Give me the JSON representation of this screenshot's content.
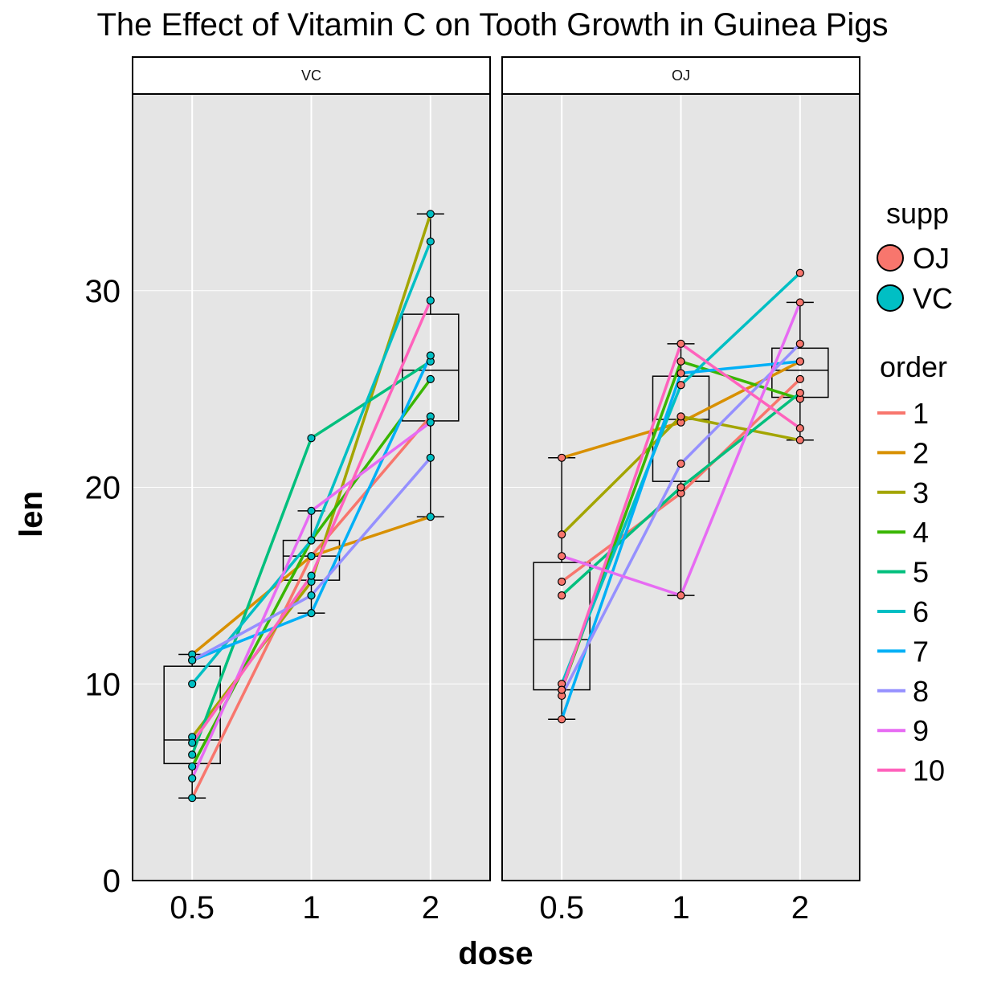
{
  "chart_data": {
    "type": "line",
    "title": "The Effect of Vitamin C on Tooth Growth in Guinea Pigs",
    "xlabel": "dose",
    "ylabel": "len",
    "x_categories": [
      "0.5",
      "1",
      "2"
    ],
    "ylim": [
      0,
      40
    ],
    "y_ticks": [
      0,
      10,
      20,
      30
    ],
    "grid": true,
    "legend_placement": "right",
    "overlays": [
      "boxplot",
      "points"
    ],
    "panels": [
      {
        "label": "VC",
        "supp": "VC",
        "series": [
          {
            "name": "1",
            "values": [
              4.2,
              16.5,
              23.6
            ]
          },
          {
            "name": "2",
            "values": [
              11.5,
              16.5,
              18.5
            ]
          },
          {
            "name": "3",
            "values": [
              7.3,
              15.2,
              33.9
            ]
          },
          {
            "name": "4",
            "values": [
              5.8,
              17.3,
              25.5
            ]
          },
          {
            "name": "5",
            "values": [
              6.4,
              22.5,
              26.4
            ]
          },
          {
            "name": "6",
            "values": [
              10.0,
              17.3,
              32.5
            ]
          },
          {
            "name": "7",
            "values": [
              11.2,
              13.6,
              26.7
            ]
          },
          {
            "name": "8",
            "values": [
              11.2,
              14.5,
              21.5
            ]
          },
          {
            "name": "9",
            "values": [
              5.2,
              18.8,
              23.3
            ]
          },
          {
            "name": "10",
            "values": [
              7.0,
              15.5,
              29.5
            ]
          }
        ]
      },
      {
        "label": "OJ",
        "supp": "OJ",
        "series": [
          {
            "name": "1",
            "values": [
              15.2,
              19.7,
              25.5
            ]
          },
          {
            "name": "2",
            "values": [
              21.5,
              23.3,
              26.4
            ]
          },
          {
            "name": "3",
            "values": [
              17.6,
              23.6,
              22.4
            ]
          },
          {
            "name": "4",
            "values": [
              9.7,
              26.4,
              24.5
            ]
          },
          {
            "name": "5",
            "values": [
              14.5,
              20.0,
              24.8
            ]
          },
          {
            "name": "6",
            "values": [
              10.0,
              25.2,
              30.9
            ]
          },
          {
            "name": "7",
            "values": [
              8.2,
              25.8,
              26.4
            ]
          },
          {
            "name": "8",
            "values": [
              9.4,
              21.2,
              27.3
            ]
          },
          {
            "name": "9",
            "values": [
              16.5,
              14.5,
              29.4
            ]
          },
          {
            "name": "10",
            "values": [
              9.7,
              27.3,
              23.0
            ]
          }
        ]
      }
    ],
    "legend": {
      "supp": {
        "title": "supp",
        "items": [
          {
            "label": "OJ",
            "color": "#F8766D"
          },
          {
            "label": "VC",
            "color": "#00BFC4"
          }
        ]
      },
      "order": {
        "title": "order",
        "items": [
          {
            "label": "1",
            "color": "#F8766D"
          },
          {
            "label": "2",
            "color": "#D89000"
          },
          {
            "label": "3",
            "color": "#A3A500"
          },
          {
            "label": "4",
            "color": "#39B600"
          },
          {
            "label": "5",
            "color": "#00BF7D"
          },
          {
            "label": "6",
            "color": "#00BFC4"
          },
          {
            "label": "7",
            "color": "#00B0F6"
          },
          {
            "label": "8",
            "color": "#9590FF"
          },
          {
            "label": "9",
            "color": "#E76BF3"
          },
          {
            "label": "10",
            "color": "#FF62BC"
          }
        ]
      }
    }
  }
}
